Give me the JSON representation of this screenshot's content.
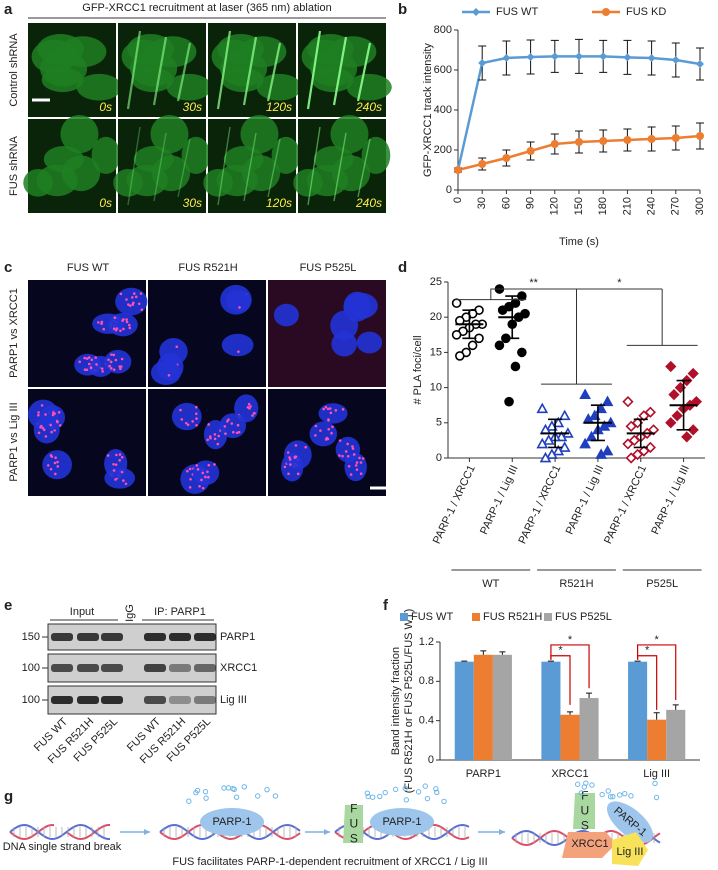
{
  "panel_letters": [
    "a",
    "b",
    "c",
    "d",
    "e",
    "f",
    "g"
  ],
  "panel_a": {
    "title": "GFP-XRCC1 recruitment at laser (365 nm) ablation",
    "rows": [
      "Control shRNA",
      "FUS shRNA"
    ],
    "times": [
      "0s",
      "30s",
      "120s",
      "240s"
    ]
  },
  "chart_data": [
    {
      "type": "line",
      "x": [
        0,
        30,
        60,
        90,
        120,
        150,
        180,
        210,
        240,
        270,
        300
      ],
      "xlim": [
        0,
        300
      ],
      "xticks": [
        0,
        30,
        60,
        90,
        120,
        150,
        180,
        210,
        240,
        270,
        300
      ],
      "ylim": [
        0,
        800
      ],
      "yticks": [
        0,
        200,
        400,
        600,
        800
      ],
      "xlabel": "Time (s)",
      "ylabel": "GFP-XRCC1 track intensity",
      "legend": "top",
      "series": [
        {
          "name": "FUS WT",
          "color": "#5b9bd5",
          "marker": "diamond",
          "values": [
            100,
            635,
            660,
            665,
            668,
            668,
            668,
            663,
            660,
            650,
            630
          ],
          "errors": [
            10,
            85,
            85,
            85,
            80,
            85,
            80,
            85,
            85,
            85,
            80
          ]
        },
        {
          "name": "FUS KD",
          "color": "#ed7d31",
          "marker": "circle",
          "values": [
            100,
            130,
            160,
            195,
            230,
            240,
            245,
            250,
            255,
            260,
            270
          ],
          "errors": [
            10,
            30,
            40,
            45,
            50,
            55,
            55,
            55,
            60,
            60,
            65
          ]
        }
      ]
    },
    {
      "type": "dot",
      "categories": [
        "PARP-1 / XRCC1",
        "PARP-1 / Lig III",
        "PARP-1 / XRCC1",
        "PARP-1 / Lig III",
        "PARP-1 / XRCC1",
        "PARP-1 / Lig III"
      ],
      "group_labels": [
        "WT",
        "R521H",
        "P525L"
      ],
      "ylabel": "# PLA foci/cell",
      "ylim": [
        0,
        25
      ],
      "yticks": [
        0,
        5,
        10,
        15,
        20,
        25
      ],
      "annotations": [
        "**",
        "*"
      ],
      "groups": [
        {
          "color": "#000000",
          "marker": "circle",
          "filled": false,
          "values": [
            22,
            21,
            20.5,
            20,
            19.5,
            19,
            19,
            18.5,
            18,
            17.5,
            17,
            16,
            15,
            14.5
          ]
        },
        {
          "color": "#000000",
          "marker": "circle",
          "filled": true,
          "values": [
            24,
            23,
            22,
            21.5,
            21,
            20.5,
            20,
            19,
            17,
            16,
            15,
            13,
            8
          ]
        },
        {
          "color": "#1f3fbf",
          "marker": "triangle",
          "filled": false,
          "values": [
            7,
            6,
            5,
            4.5,
            4,
            3.5,
            3,
            3,
            2.5,
            2,
            1.5,
            1,
            0.5,
            0
          ]
        },
        {
          "color": "#1f3fbf",
          "marker": "triangle",
          "filled": true,
          "values": [
            9,
            8,
            7,
            6,
            5.5,
            5,
            4.5,
            4,
            3,
            2,
            1,
            0.5
          ]
        },
        {
          "color": "#b0102a",
          "marker": "diamond",
          "filled": false,
          "values": [
            8,
            6.5,
            6,
            5,
            4.5,
            4,
            3.5,
            3,
            2.5,
            2,
            1.5,
            1,
            0.5,
            0
          ]
        },
        {
          "color": "#b0102a",
          "marker": "diamond",
          "filled": true,
          "values": [
            13,
            12,
            11,
            10,
            9,
            8,
            7.5,
            7,
            6,
            5,
            4,
            3
          ]
        }
      ],
      "means": [
        19,
        20,
        3.5,
        5,
        3.5,
        7.5
      ],
      "sd": [
        2,
        3,
        2,
        2.5,
        2,
        3.5
      ]
    },
    {
      "type": "bar",
      "categories": [
        "PARP1",
        "XRCC1",
        "Lig III"
      ],
      "ylabel": [
        "Band intensity fraction",
        "(FUS R521H or FUS P525L/FUS WT)"
      ],
      "ylim": [
        0,
        1.2
      ],
      "yticks": [
        0,
        0.4,
        0.8,
        1.2
      ],
      "legend": "top",
      "annotations": [
        "*",
        "*",
        "*",
        "*"
      ],
      "series": [
        {
          "name": "FUS WT",
          "color": "#5b9bd5",
          "values": [
            1.0,
            1.0,
            1.0
          ],
          "errors": [
            0.005,
            0.005,
            0.005
          ]
        },
        {
          "name": "FUS R521H",
          "color": "#ed7d31",
          "values": [
            1.07,
            0.46,
            0.41
          ],
          "errors": [
            0.04,
            0.03,
            0.07
          ]
        },
        {
          "name": "FUS P525L",
          "color": "#a5a5a5",
          "values": [
            1.07,
            0.63,
            0.51
          ],
          "errors": [
            0.03,
            0.05,
            0.05
          ]
        }
      ]
    }
  ],
  "panel_c": {
    "columns": [
      "FUS WT",
      "FUS R521H",
      "FUS P525L"
    ],
    "rows": [
      "PARP1 vs XRCC1",
      "PARP1 vs Lig III"
    ]
  },
  "panel_e": {
    "groups": [
      "Input",
      "IgG",
      "IP: PARP1"
    ],
    "markers": [
      "150",
      "100",
      "100"
    ],
    "bands": [
      "PARP1",
      "XRCC1",
      "Lig III"
    ],
    "lanes": [
      "FUS WT",
      "FUS R521H",
      "FUS P525L",
      "FUS WT",
      "FUS R521H",
      "FUS P525L"
    ]
  },
  "panel_g": {
    "start": "DNA single strand break",
    "parp": "PARP-1",
    "fus": "FUS",
    "xrcc1": "XRCC1",
    "lig3": "Lig III",
    "caption": "FUS facilitates PARP-1-dependent recruitment of XRCC1 / Lig III"
  }
}
